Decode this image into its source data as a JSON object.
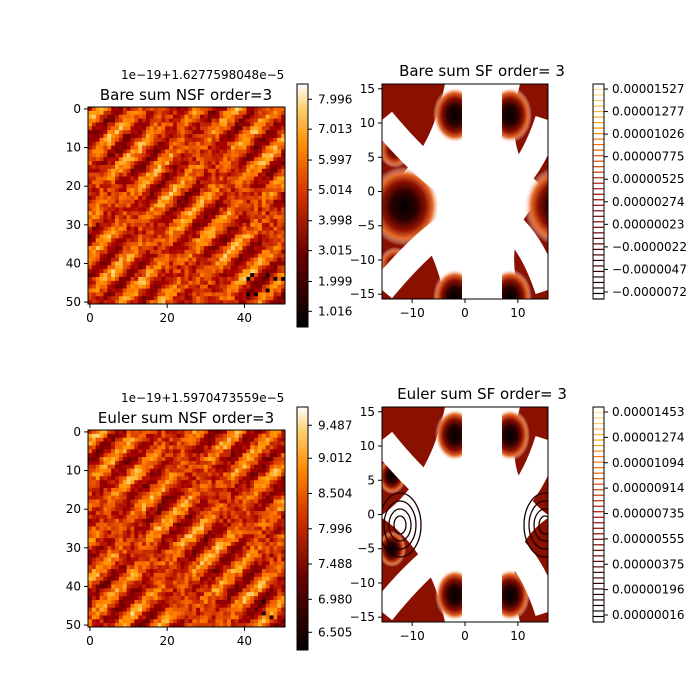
{
  "chart_data": [
    {
      "type": "heatmap",
      "title": "Bare sum NSF order=3",
      "offset_label": "1e−19+1.6277598048e−5",
      "x_ticks": [
        "0",
        "20",
        "40"
      ],
      "y_ticks": [
        "0",
        "10",
        "20",
        "30",
        "40",
        "50"
      ],
      "grid_size": 51,
      "colormap": "gist_heat",
      "colorbar_ticks": [
        "7.996",
        "7.013",
        "5.997",
        "5.014",
        "3.998",
        "3.015",
        "1.999",
        "1.016"
      ],
      "colorbar_tick_values": [
        7.996,
        7.013,
        5.997,
        5.014,
        3.998,
        3.015,
        1.999,
        1.016
      ],
      "vmin": 0.5,
      "vmax": 8.5
    },
    {
      "type": "heatmap",
      "title": "Euler sum NSF order=3",
      "offset_label": "1e−19+1.5970473559e−5",
      "x_ticks": [
        "0",
        "20",
        "40"
      ],
      "y_ticks": [
        "0",
        "10",
        "20",
        "30",
        "40",
        "50"
      ],
      "grid_size": 51,
      "colormap": "gist_heat",
      "colorbar_ticks": [
        "9.487",
        "9.012",
        "8.504",
        "7.996",
        "7.488",
        "6.980",
        "6.505"
      ],
      "colorbar_tick_values": [
        9.487,
        9.012,
        8.504,
        7.996,
        7.488,
        6.98,
        6.505
      ],
      "vmin": 6.25,
      "vmax": 9.75
    },
    {
      "type": "contour",
      "title": "Bare sum SF order= 3",
      "x_ticks": [
        "−10",
        "0",
        "10"
      ],
      "x_tick_values": [
        -10,
        0,
        10
      ],
      "y_ticks": [
        "15",
        "10",
        "5",
        "0",
        "−5",
        "−10",
        "−15"
      ],
      "y_tick_values": [
        15,
        10,
        5,
        0,
        -5,
        -10,
        -15
      ],
      "xlim": [
        -15.7,
        15.7
      ],
      "ylim": [
        -15.7,
        15.7
      ],
      "colormap": "gist_heat",
      "colorbar_ticks": [
        "0.00001527",
        "0.00001277",
        "0.00001026",
        "0.00000775",
        "0.00000525",
        "0.00000274",
        "0.00000023",
        "−0.0000022",
        "−0.0000047",
        "−0.0000072"
      ]
    },
    {
      "type": "contour",
      "title": "Euler sum SF order= 3",
      "x_ticks": [
        "−10",
        "0",
        "10"
      ],
      "x_tick_values": [
        -10,
        0,
        10
      ],
      "y_ticks": [
        "15",
        "10",
        "5",
        "0",
        "−5",
        "−10",
        "−15"
      ],
      "y_tick_values": [
        15,
        10,
        5,
        0,
        -5,
        -10,
        -15
      ],
      "xlim": [
        -15.7,
        15.7
      ],
      "ylim": [
        -15.7,
        15.7
      ],
      "colormap": "gist_heat",
      "colorbar_ticks": [
        "0.00001453",
        "0.00001274",
        "0.00001094",
        "0.00000914",
        "0.00000735",
        "0.00000555",
        "0.00000375",
        "0.00000196",
        "0.00000016"
      ]
    }
  ]
}
